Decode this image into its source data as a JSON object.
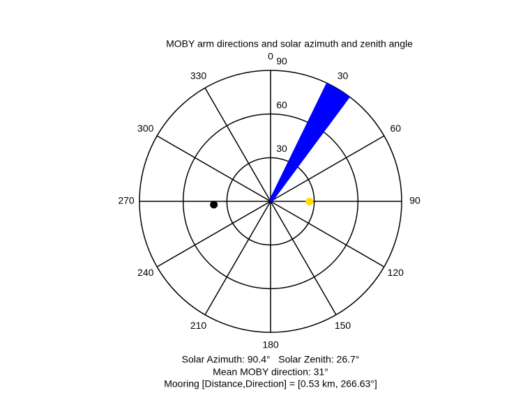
{
  "chart_data": {
    "type": "polar",
    "title": "MOBY arm directions and solar azimuth and zenith angle",
    "theta_zero": "north",
    "theta_direction": "clockwise",
    "thetaticks": [
      0,
      30,
      60,
      90,
      120,
      150,
      180,
      210,
      240,
      270,
      300,
      330
    ],
    "rlim": [
      0,
      90
    ],
    "rticks": [
      30,
      60,
      90
    ],
    "series": [
      {
        "style": "ray",
        "color": "#0000ff",
        "theta": [
          26,
          27.5,
          29,
          30.5,
          32,
          33.5,
          35,
          36.5
        ],
        "r": [
          90,
          90,
          90,
          90,
          90,
          90,
          90,
          90
        ]
      },
      {
        "style": "marker",
        "color": "#ffdd00",
        "theta": [
          90.4
        ],
        "r": [
          26.7
        ]
      },
      {
        "style": "marker",
        "color": "#000000",
        "theta": [
          266.63
        ],
        "r": [
          39
        ]
      }
    ],
    "annotations": [
      "Solar Azimuth: 90.4°   Solar Zenith: 26.7°",
      "Mean MOBY direction: 31°",
      "Mooring [Distance,Direction] = [0.53 km, 266.63°]"
    ]
  }
}
